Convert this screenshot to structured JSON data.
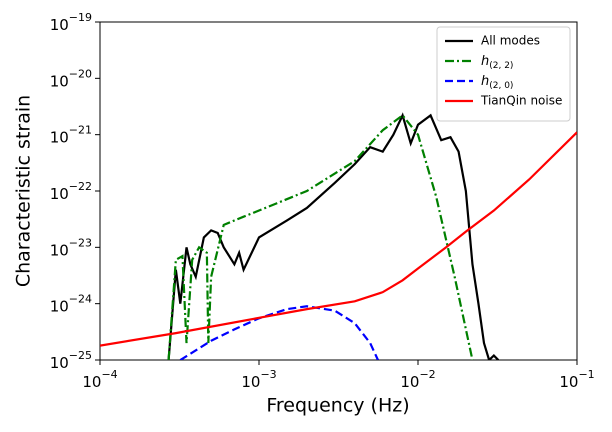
{
  "chart_data": {
    "type": "line",
    "xlabel": "Frequency (Hz)",
    "ylabel": "Characteristic strain",
    "xscale": "log",
    "yscale": "log",
    "xlim": [
      0.0001,
      0.1
    ],
    "ylim": [
      1e-25,
      1e-19
    ],
    "xticks": [
      {
        "value": 0.0001,
        "label": "10−4"
      },
      {
        "value": 0.001,
        "label": "10−3"
      },
      {
        "value": 0.01,
        "label": "10−2"
      },
      {
        "value": 0.1,
        "label": "10−1"
      }
    ],
    "yticks": [
      {
        "value": 1e-25,
        "label": "10−25"
      },
      {
        "value": 1e-24,
        "label": "10−24"
      },
      {
        "value": 1e-23,
        "label": "10−23"
      },
      {
        "value": 1e-22,
        "label": "10−22"
      },
      {
        "value": 1e-21,
        "label": "10−21"
      },
      {
        "value": 1e-20,
        "label": "10−20"
      },
      {
        "value": 1e-19,
        "label": "10−19"
      }
    ],
    "legend": "upper right",
    "series": [
      {
        "name": "All modes",
        "color": "#000000",
        "linestyle": "solid",
        "x": [
          0.00027,
          0.0003,
          0.00032,
          0.00035,
          0.00037,
          0.0004,
          0.00045,
          0.0005,
          0.00055,
          0.0006,
          0.0007,
          0.00075,
          0.0008,
          0.001,
          0.0015,
          0.002,
          0.003,
          0.004,
          0.005,
          0.006,
          0.007,
          0.008,
          0.009,
          0.01,
          0.012,
          0.014,
          0.016,
          0.018,
          0.02,
          0.022,
          0.024,
          0.026,
          0.028,
          0.03,
          0.032
        ],
        "values": [
          1e-25,
          4e-24,
          1e-24,
          1e-23,
          5e-24,
          3e-24,
          1.5e-23,
          2e-23,
          1.8e-23,
          1e-23,
          5e-24,
          8e-24,
          4e-24,
          1.5e-23,
          3e-23,
          5e-23,
          1.4e-22,
          3e-22,
          6e-22,
          5e-22,
          1e-21,
          2.2e-21,
          7e-22,
          1.5e-21,
          2.2e-21,
          8e-22,
          9e-22,
          5e-22,
          1e-22,
          5e-24,
          1e-24,
          2e-25,
          1e-25,
          1.2e-25,
          1e-25
        ]
      },
      {
        "name": "h(2, 2)",
        "color": "#008000",
        "linestyle": "dashdot",
        "x": [
          0.00027,
          0.0003,
          0.00033,
          0.00035,
          0.00038,
          0.00042,
          0.00047,
          0.00048,
          0.0005,
          0.0006,
          0.0008,
          0.001,
          0.002,
          0.004,
          0.006,
          0.008,
          0.01,
          0.013,
          0.017,
          0.022
        ],
        "values": [
          1e-25,
          6e-24,
          7e-24,
          2e-25,
          6e-24,
          1e-23,
          8e-24,
          2e-25,
          3e-24,
          2.5e-23,
          3.5e-23,
          4.5e-23,
          1e-22,
          3.4e-22,
          1.2e-21,
          2.2e-21,
          1e-21,
          8e-23,
          3e-24,
          1e-25
        ]
      },
      {
        "name": "h(2, 0)",
        "color": "#0000ff",
        "linestyle": "dashed",
        "x": [
          0.00032,
          0.0005,
          0.0007,
          0.001,
          0.0015,
          0.002,
          0.003,
          0.004,
          0.005,
          0.0056
        ],
        "values": [
          1e-25,
          2.2e-25,
          3.5e-25,
          5.5e-25,
          8e-25,
          9e-25,
          7.5e-25,
          4.5e-25,
          2e-25,
          1e-25
        ]
      },
      {
        "name": "TianQin noise",
        "color": "#ff0000",
        "linestyle": "solid",
        "x": [
          0.0001,
          0.0003,
          0.001,
          0.002,
          0.004,
          0.006,
          0.008,
          0.01,
          0.015,
          0.02,
          0.03,
          0.05,
          0.1
        ],
        "values": [
          1.8e-25,
          3e-25,
          5.6e-25,
          8e-25,
          1.1e-24,
          1.6e-24,
          2.6e-24,
          4.2e-24,
          1e-23,
          1.9e-23,
          4.5e-23,
          1.6e-22,
          1.1e-21
        ]
      }
    ]
  }
}
